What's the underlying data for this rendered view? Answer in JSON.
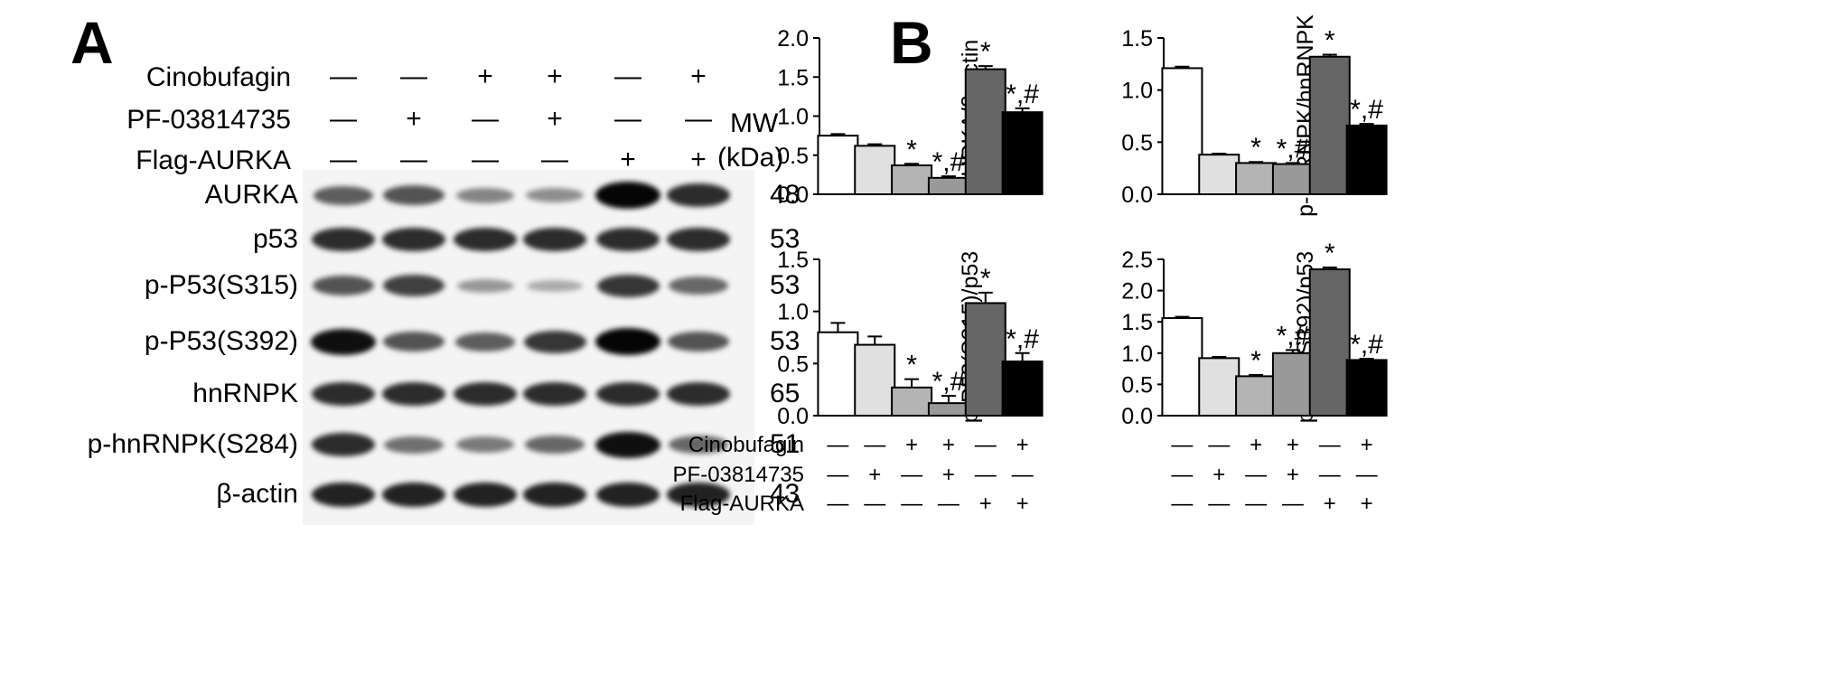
{
  "panel_a": {
    "letter": "A",
    "mw_header": [
      "MW",
      "(kDa)"
    ],
    "treatments": [
      {
        "label": "Cinobufagin",
        "signs": [
          "—",
          "—",
          "+",
          "+",
          "—",
          "+"
        ]
      },
      {
        "label": "PF-03814735",
        "signs": [
          "—",
          "+",
          "—",
          "+",
          "—",
          "—"
        ]
      },
      {
        "label": "Flag-AURKA",
        "signs": [
          "—",
          "—",
          "—",
          "—",
          "+",
          "+"
        ]
      }
    ],
    "blots": [
      {
        "label": "AURKA",
        "mw": "48",
        "intensities": [
          0.55,
          0.6,
          0.35,
          0.3,
          1.0,
          0.8
        ]
      },
      {
        "label": "p53",
        "mw": "53",
        "intensities": [
          0.8,
          0.8,
          0.8,
          0.8,
          0.8,
          0.8
        ]
      },
      {
        "label": "p-P53(S315)",
        "mw": "53",
        "intensities": [
          0.6,
          0.7,
          0.25,
          0.15,
          0.75,
          0.5
        ]
      },
      {
        "label": "p-P53(S392)",
        "mw": "53",
        "intensities": [
          0.95,
          0.6,
          0.55,
          0.75,
          1.0,
          0.6
        ]
      },
      {
        "label": "hnRNPK",
        "mw": "65",
        "intensities": [
          0.8,
          0.8,
          0.8,
          0.8,
          0.8,
          0.8
        ]
      },
      {
        "label": "p-hnRNPK(S284)",
        "mw": "51",
        "intensities": [
          0.8,
          0.45,
          0.4,
          0.5,
          0.95,
          0.5
        ]
      },
      {
        "label": "β-actin",
        "mw": "43",
        "intensities": [
          0.85,
          0.85,
          0.85,
          0.85,
          0.85,
          0.85
        ]
      }
    ]
  },
  "panel_b": {
    "letter": "B",
    "treatments": [
      {
        "label": "Cinobufagin",
        "signs": [
          "—",
          "—",
          "+",
          "+",
          "—",
          "+"
        ]
      },
      {
        "label": "PF-03814735",
        "signs": [
          "—",
          "+",
          "—",
          "+",
          "—",
          "—"
        ]
      },
      {
        "label": "Flag-AURKA",
        "signs": [
          "—",
          "—",
          "—",
          "—",
          "+",
          "+"
        ]
      }
    ],
    "bar_colors": [
      "#ffffff",
      "#e0e0e0",
      "#b4b4b4",
      "#999999",
      "#666666",
      "#000000"
    ]
  },
  "chart_data": [
    {
      "type": "bar",
      "ylabel": "AURKA/β-actin",
      "ylim": [
        0,
        2.0
      ],
      "yticks": [
        "0.0",
        "0.5",
        "1.0",
        "1.5",
        "2.0"
      ],
      "values": [
        0.75,
        0.62,
        0.37,
        0.21,
        1.6,
        1.05
      ],
      "errors": [
        0.02,
        0.02,
        0.02,
        0.02,
        0.04,
        0.05
      ],
      "annotations": [
        "",
        "",
        "*",
        "*,#",
        "*",
        "*,#"
      ]
    },
    {
      "type": "bar",
      "ylabel": "p-hnRNPK/hnRNPK",
      "ylim": [
        0,
        1.5
      ],
      "yticks": [
        "0.0",
        "0.5",
        "1.0",
        "1.5"
      ],
      "values": [
        1.21,
        0.38,
        0.3,
        0.29,
        1.32,
        0.66
      ],
      "errors": [
        0.015,
        0.01,
        0.01,
        0.01,
        0.02,
        0.015
      ],
      "annotations": [
        "",
        "",
        "*",
        "*,#",
        "*",
        "*,#"
      ]
    },
    {
      "type": "bar",
      "ylabel": "p-P53(S315)/p53",
      "ylim": [
        0,
        1.5
      ],
      "yticks": [
        "0.0",
        "0.5",
        "1.0",
        "1.5"
      ],
      "values": [
        0.8,
        0.68,
        0.27,
        0.12,
        1.08,
        0.52
      ],
      "errors": [
        0.09,
        0.08,
        0.08,
        0.07,
        0.1,
        0.08
      ],
      "annotations": [
        "",
        "",
        "*",
        "*,#",
        "*",
        "*,#"
      ]
    },
    {
      "type": "bar",
      "ylabel": "p-P53(S392)/p53",
      "ylim": [
        0,
        2.5
      ],
      "yticks": [
        "0.0",
        "0.5",
        "1.0",
        "1.5",
        "2.0",
        "2.5"
      ],
      "values": [
        1.56,
        0.92,
        0.63,
        1.0,
        2.34,
        0.89
      ],
      "errors": [
        0.02,
        0.02,
        0.02,
        0.05,
        0.03,
        0.02
      ],
      "annotations": [
        "",
        "",
        "*",
        "*,#",
        "*",
        "*,#"
      ]
    }
  ]
}
